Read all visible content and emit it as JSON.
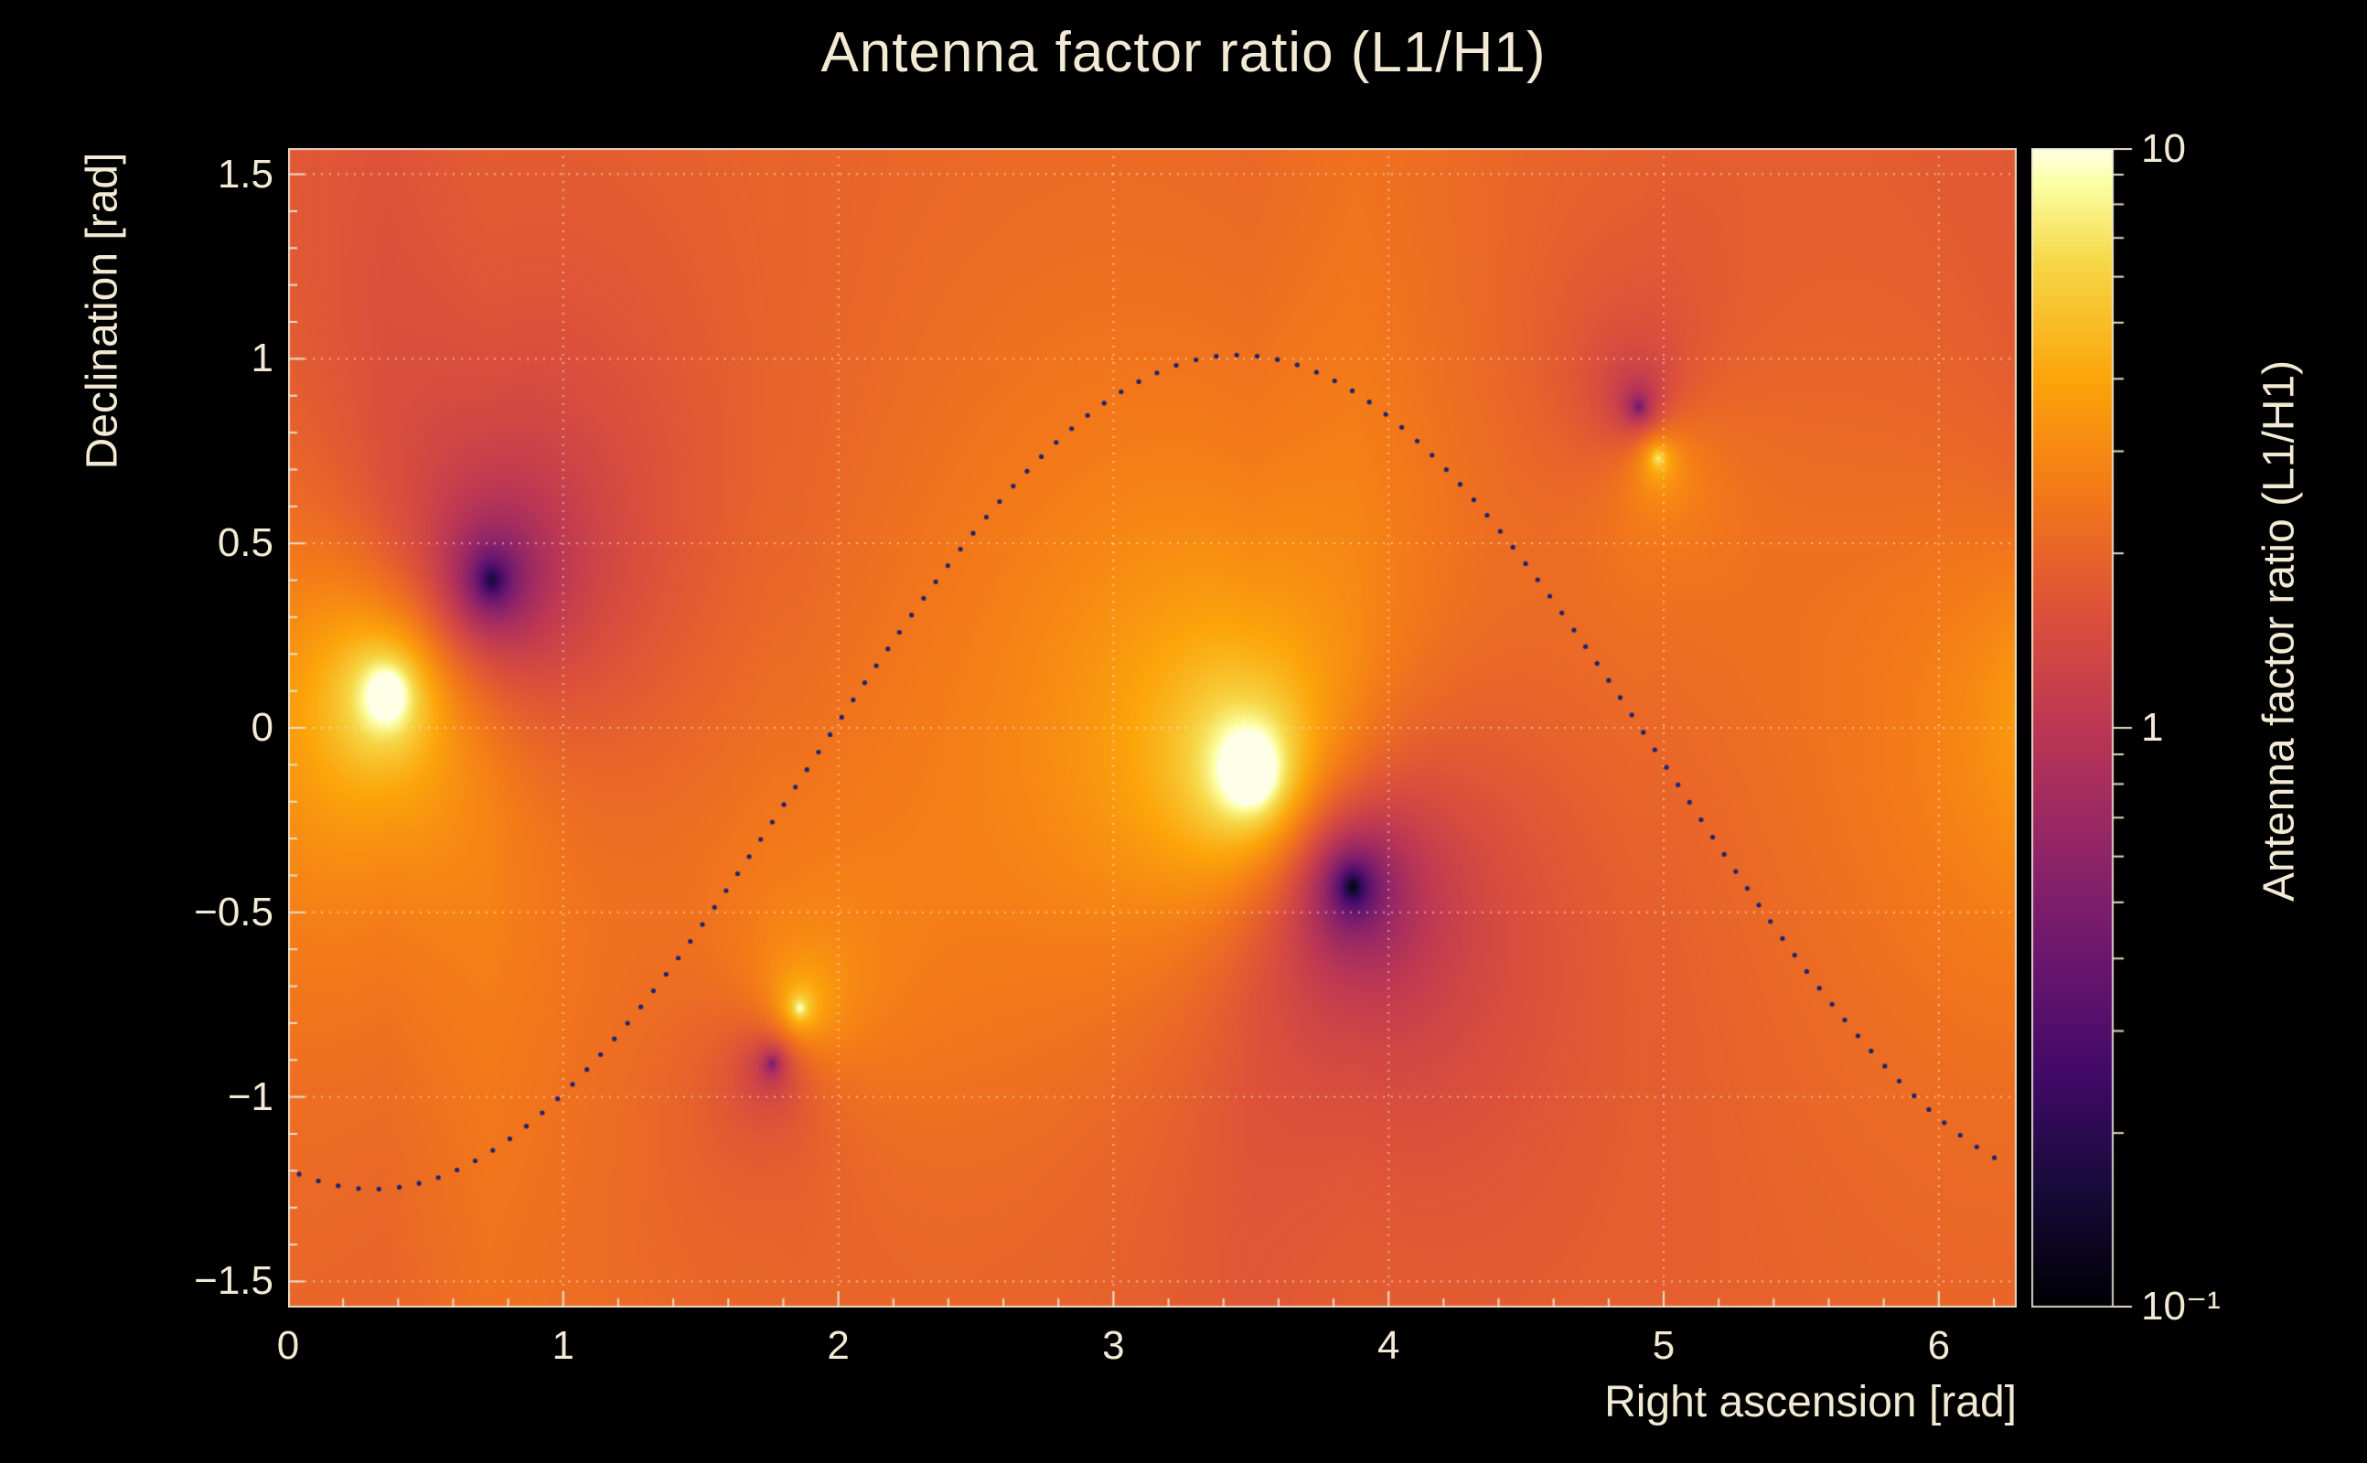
{
  "chart": {
    "title": "Antenna factor ratio (L1/H1)",
    "xlabel": "Right ascension [rad]",
    "ylabel": "Declination [rad]",
    "colorbar_label": "Antenna factor ratio (L1/H1)"
  },
  "colors": {
    "background": "#000000",
    "text": "#f2ead4",
    "grid": "rgba(255,255,255,0.5)",
    "frame": "rgba(235,228,210,0.9)",
    "tick": "#e9e1cb",
    "curve_dots": "#1d2470"
  },
  "chart_data": {
    "type": "heatmap",
    "title": "Antenna factor ratio (L1/H1)",
    "xlabel": "Right ascension [rad]",
    "ylabel": "Declination [rad]",
    "colorbar_label": "Antenna factor ratio (L1/H1)",
    "x_range": [
      0,
      6.2832
    ],
    "y_range": [
      -1.5708,
      1.5708
    ],
    "z_scale": "log",
    "z_range": [
      0.1,
      10
    ],
    "grid": true,
    "background_ratio": 2.0,
    "x_ticks": [
      {
        "value": 0,
        "label": "0"
      },
      {
        "value": 1,
        "label": "1"
      },
      {
        "value": 2,
        "label": "2"
      },
      {
        "value": 3,
        "label": "3"
      },
      {
        "value": 4,
        "label": "4"
      },
      {
        "value": 5,
        "label": "5"
      },
      {
        "value": 6,
        "label": "6"
      }
    ],
    "y_ticks": [
      {
        "value": -1.5,
        "label": "−1.5"
      },
      {
        "value": -1,
        "label": "−1"
      },
      {
        "value": -0.5,
        "label": "−0.5"
      },
      {
        "value": 0,
        "label": "0"
      },
      {
        "value": 0.5,
        "label": "0.5"
      },
      {
        "value": 1,
        "label": "1"
      },
      {
        "value": 1.5,
        "label": "1.5"
      }
    ],
    "x_minor_step": 0.2,
    "y_minor_step": 0.1,
    "colorbar_ticks": [
      {
        "value": 10,
        "label": "10"
      },
      {
        "value": 1,
        "label": "1"
      },
      {
        "value": 0.1,
        "label": "10⁻¹"
      }
    ],
    "bright_peaks": [
      {
        "ra": 0.36,
        "dec": 0.09,
        "strength": 0.85,
        "core": 0.022
      },
      {
        "ra": 1.86,
        "dec": -0.76,
        "strength": 0.5,
        "core": 0.01
      },
      {
        "ra": 3.5,
        "dec": -0.12,
        "strength": 1.0,
        "core": 0.022
      },
      {
        "ra": 4.98,
        "dec": 0.73,
        "strength": 0.5,
        "core": 0.01
      }
    ],
    "dark_nulls": [
      {
        "ra": 0.74,
        "dec": 0.4,
        "strength": 0.85,
        "core": 0.022
      },
      {
        "ra": 1.76,
        "dec": -0.91,
        "strength": 0.5,
        "core": 0.008
      },
      {
        "ra": 3.87,
        "dec": -0.43,
        "strength": 0.95,
        "core": 0.02
      },
      {
        "ra": 4.91,
        "dec": 0.87,
        "strength": 0.55,
        "core": 0.01
      }
    ],
    "overlay_curve": {
      "type": "sinusoid",
      "style": "dotted",
      "offset": -0.12,
      "amplitude": 1.13,
      "phase": 1.88,
      "x_start": 0.04,
      "x_end": 6.26,
      "dot_spacing_px": 22,
      "dot_radius_px": 2.6
    },
    "colormap": [
      {
        "t": 0.0,
        "color": "#000004"
      },
      {
        "t": 0.1,
        "color": "#160b39"
      },
      {
        "t": 0.2,
        "color": "#420a68"
      },
      {
        "t": 0.3,
        "color": "#6a176e"
      },
      {
        "t": 0.4,
        "color": "#932667"
      },
      {
        "t": 0.5,
        "color": "#bc3754"
      },
      {
        "t": 0.6,
        "color": "#dd513a"
      },
      {
        "t": 0.7,
        "color": "#f37819"
      },
      {
        "t": 0.8,
        "color": "#fca50a"
      },
      {
        "t": 0.9,
        "color": "#f6d746"
      },
      {
        "t": 0.97,
        "color": "#fcffa4"
      },
      {
        "t": 1.0,
        "color": "#ffffe8"
      }
    ]
  }
}
